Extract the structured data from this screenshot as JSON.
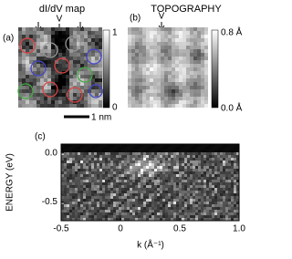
{
  "panels": [
    {
      "label": "(a)",
      "title": "dI/dV map",
      "marker": "V",
      "colorbar": {
        "max": "1",
        "min": "0"
      },
      "scale_bar": "1 nm"
    },
    {
      "label": "(b)",
      "title": "TOPOGRAPHY",
      "marker": "V",
      "colorbar": {
        "max": "0.8 Å",
        "min": "0.0 Å"
      }
    },
    {
      "label": "(c)",
      "xlabel": "k (Å⁻¹)",
      "ylabel": "ENERGY (eV)",
      "xlim": [
        -0.5,
        1.0
      ],
      "ylim": [
        -0.69,
        0.09
      ],
      "xticks": [
        -0.5,
        0,
        0.5,
        {
          "value": 1,
          "label": "1.0"
        }
      ],
      "yticks": [
        {
          "value": 0,
          "label": "0.0"
        },
        -0.5
      ]
    }
  ]
}
